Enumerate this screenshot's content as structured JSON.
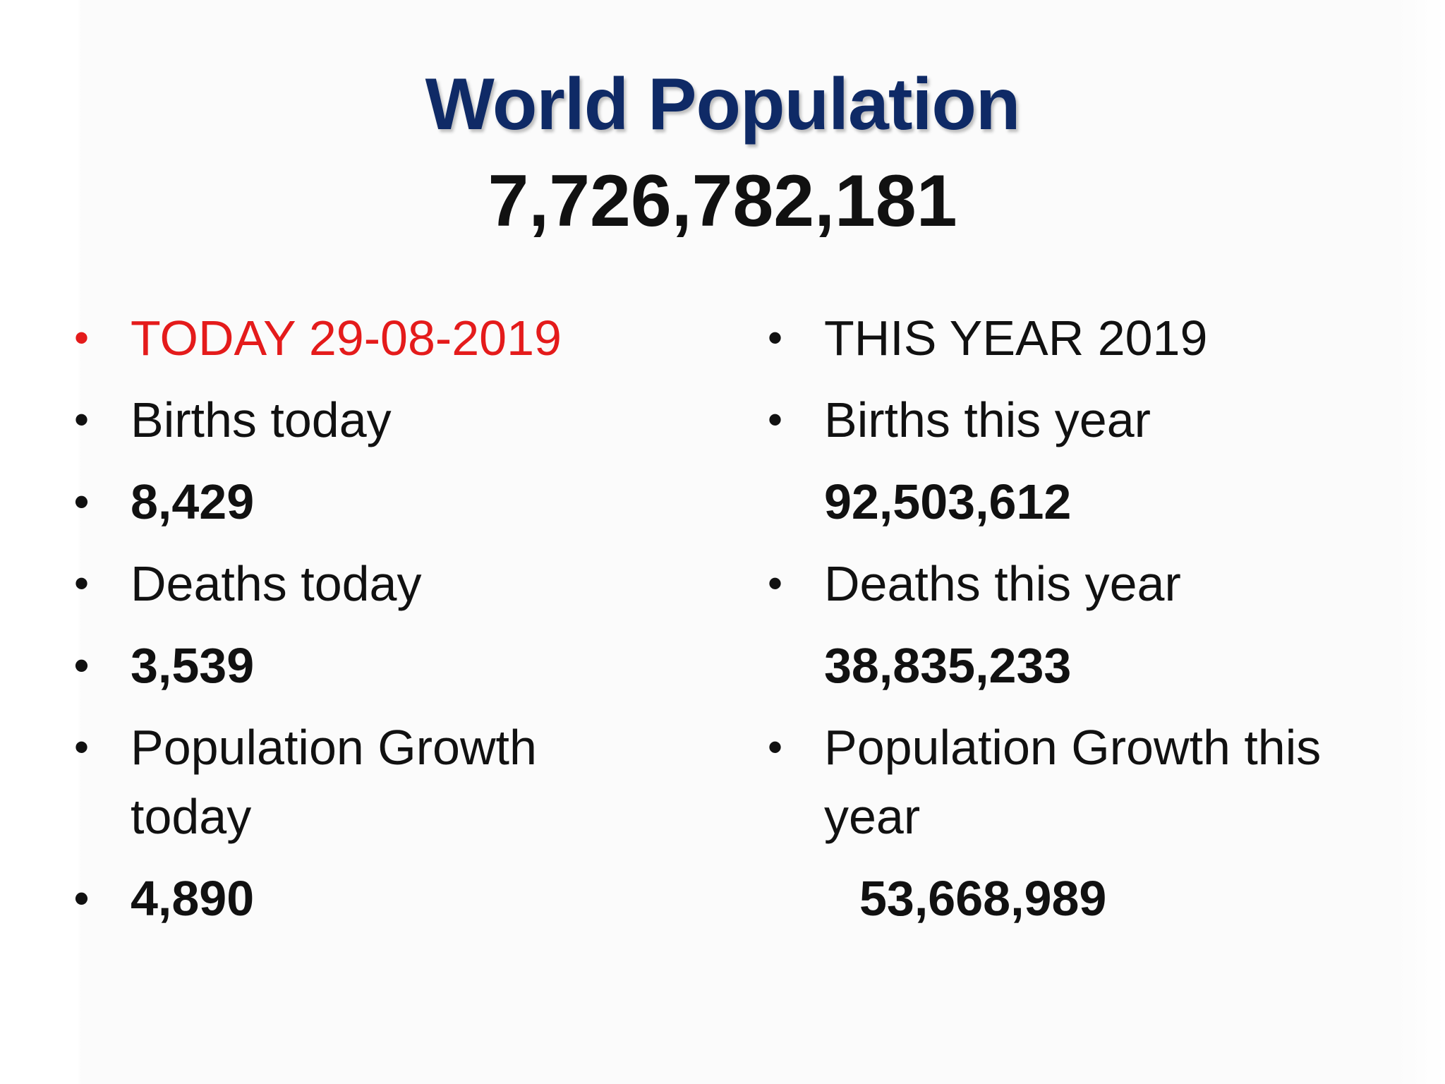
{
  "title": "World Population",
  "total_population": "7,726,782,181",
  "left_column": {
    "heading": "TODAY 29-08-2019",
    "births_label": "Births today",
    "births_value": "8,429",
    "deaths_label": "Deaths today",
    "deaths_value": "3,539",
    "growth_label": "Population Growth today",
    "growth_value": "4,890"
  },
  "right_column": {
    "heading": "THIS YEAR 2019",
    "births_label": "Births this year",
    "births_value": "92,503,612",
    "deaths_label": "Deaths this year",
    "deaths_value": "38,835,233",
    "growth_label": "Population Growth this year",
    "growth_value": "53,668,989"
  },
  "colors": {
    "title": "#0f2a66",
    "today_heading": "#e41b1b",
    "text": "#111111"
  },
  "bullet_glyph": "•"
}
